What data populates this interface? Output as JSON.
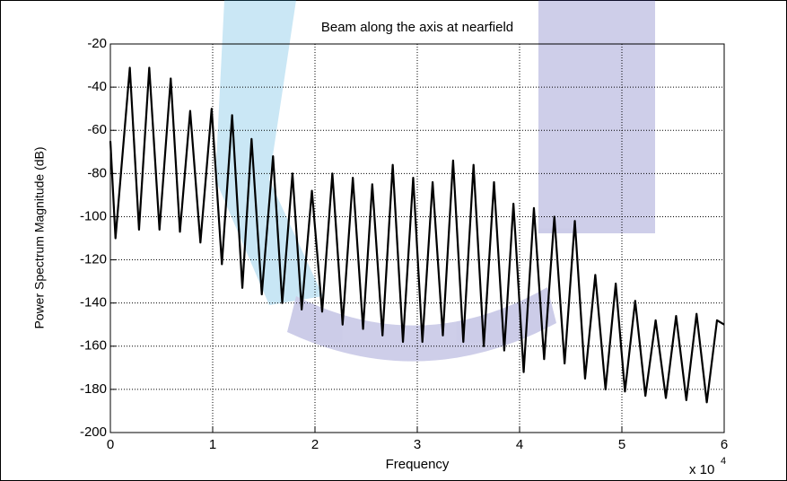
{
  "chart_data": {
    "type": "line",
    "title": "Beam along the axis at nearfield",
    "xlabel": "Frequency",
    "ylabel": "Power Spectrum Magnitude (dB)",
    "x_scale_text": "x 10",
    "x_scale_exponent": "4",
    "x": [
      0,
      0.05,
      0.19,
      0.28,
      0.38,
      0.48,
      0.59,
      0.68,
      0.78,
      0.88,
      0.99,
      1.09,
      1.19,
      1.29,
      1.38,
      1.48,
      1.59,
      1.68,
      1.78,
      1.87,
      1.97,
      2.07,
      2.17,
      2.27,
      2.37,
      2.47,
      2.56,
      2.66,
      2.76,
      2.86,
      2.96,
      3.05,
      3.15,
      3.25,
      3.35,
      3.45,
      3.55,
      3.65,
      3.75,
      3.85,
      3.94,
      4.04,
      4.14,
      4.24,
      4.34,
      4.44,
      4.54,
      4.64,
      4.74,
      4.84,
      4.94,
      5.03,
      5.13,
      5.23,
      5.33,
      5.43,
      5.53,
      5.63,
      5.73,
      5.83,
      5.93,
      6.0
    ],
    "series": [
      {
        "color": "#000000",
        "values": [
          -65,
          -110,
          -31,
          -106,
          -31,
          -106,
          -36,
          -107,
          -51,
          -112,
          -50,
          -122,
          -53,
          -133,
          -64,
          -136,
          -72,
          -140,
          -80,
          -143,
          -88,
          -144,
          -80,
          -150,
          -82,
          -152,
          -85,
          -155,
          -76,
          -158,
          -82,
          -158,
          -84,
          -155,
          -74,
          -158,
          -76,
          -160,
          -84,
          -162,
          -94,
          -172,
          -96,
          -166,
          -100,
          -168,
          -102,
          -175,
          -127,
          -180,
          -131,
          -181,
          -139,
          -183,
          -148,
          -184,
          -146,
          -185,
          -145,
          -186,
          -148,
          -150
        ]
      }
    ],
    "xlim": [
      0,
      6
    ],
    "xticks": [
      0,
      1,
      2,
      3,
      4,
      5,
      6
    ],
    "ylim": [
      -200,
      -20
    ],
    "yticks": [
      -200,
      -180,
      -160,
      -140,
      -120,
      -100,
      -80,
      -60,
      -40,
      -20
    ],
    "grid": true
  }
}
